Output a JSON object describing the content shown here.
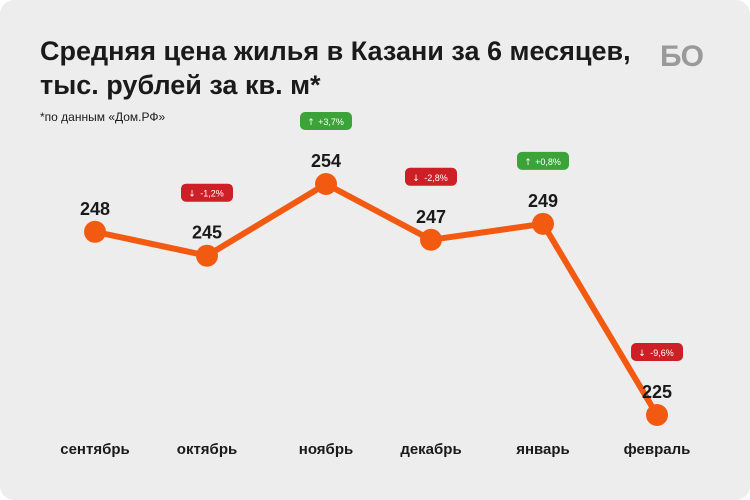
{
  "header": {
    "title_line1": "Средняя цена жилья в Казани за 6 месяцев,",
    "title_line2": "тыс. рублей за кв. м*",
    "subtitle": "*по данным «Дом.РФ»",
    "logo_text": "БО"
  },
  "colors": {
    "line": "#f25a12",
    "background": "#ededed",
    "badge_up": "#3ca339",
    "badge_down": "#cc1f26"
  },
  "chart_data": {
    "type": "line",
    "categories": [
      "сентябрь",
      "октябрь",
      "ноябрь",
      "декабрь",
      "январь",
      "февраль"
    ],
    "values": [
      248,
      245,
      254,
      247,
      249,
      225
    ],
    "value_labels": [
      "248",
      "245",
      "254",
      "247",
      "249",
      "225"
    ],
    "change_labels": [
      null,
      "-1,2%",
      "+3,7%",
      "-2,8%",
      "+0,8%",
      "-9,6%"
    ],
    "change_directions": [
      null,
      "down",
      "up",
      "down",
      "up",
      "down"
    ],
    "title": "Средняя цена жилья в Казани за 6 месяцев, тыс. рублей за кв. м*",
    "xlabel": "",
    "ylabel": "",
    "ylim": [
      225,
      254
    ],
    "grid": false,
    "legend": "none"
  }
}
